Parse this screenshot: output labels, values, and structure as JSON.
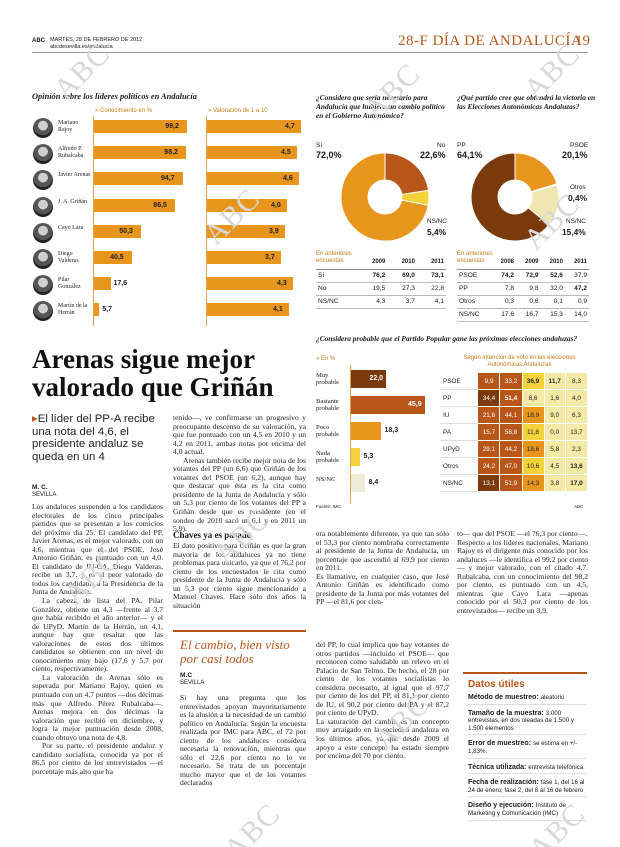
{
  "header": {
    "abc": "ABC",
    "date": "MARTES, 28 DE FEBRERO DE 2012",
    "site": "abcdesevilla.es/andalucia",
    "section": "28-F DÍA DE ANDALUCÍA",
    "page": "19"
  },
  "watermark": "ABC",
  "leaders": {
    "title": "Opinión sobre los líderes políticos en Andalucía",
    "col1": "» Conocimiento en %",
    "col2": "» Valoración de 1 a 10",
    "rows": [
      {
        "name": "Mariano Rajoy",
        "know": "99,2",
        "know_n": 99.2,
        "score": "4,7",
        "score_n": 4.7
      },
      {
        "name": "Alfredo P. Rubalcaba",
        "know": "98,2",
        "know_n": 98.2,
        "score": "4,5",
        "score_n": 4.5
      },
      {
        "name": "Javier Arenas",
        "know": "94,7",
        "know_n": 94.7,
        "score": "4,6",
        "score_n": 4.6
      },
      {
        "name": "J. A. Griñán",
        "know": "86,5",
        "know_n": 86.5,
        "score": "4,0",
        "score_n": 4.0
      },
      {
        "name": "Cayo Lara",
        "know": "50,3",
        "know_n": 50.3,
        "score": "3,9",
        "score_n": 3.9
      },
      {
        "name": "Diego Valderas",
        "know": "40,5",
        "know_n": 40.5,
        "score": "3,7",
        "score_n": 3.7
      },
      {
        "name": "Pilar González",
        "know": "17,6",
        "know_n": 17.6,
        "score": "4,3",
        "score_n": 4.3
      },
      {
        "name": "Martín de la Herrán",
        "know": "5,7",
        "know_n": 5.7,
        "score": "4,1",
        "score_n": 4.1
      }
    ]
  },
  "q1": {
    "title": "¿Considera que sería necesario para Andalucía que hubiera un cambio político en el Gobierno Autonómico?",
    "si_label": "Sí",
    "si": "72,0%",
    "si_n": 72.0,
    "no_label": "No",
    "no": "22,6%",
    "no_n": 22.6,
    "nsnc_label": "NS/NC",
    "nsnc": "5,4%",
    "nsnc_n": 5.4,
    "prev": "En anteriores encuestas",
    "years": [
      "2009",
      "2010",
      "2011"
    ],
    "rows": [
      {
        "l": "Sí",
        "v": [
          "76,2",
          "69,0",
          "73,1"
        ]
      },
      {
        "l": "No",
        "v": [
          "19,5",
          "27,3",
          "22,8"
        ]
      },
      {
        "l": "NS/NC",
        "v": [
          "4,3",
          "3,7",
          "4,1"
        ]
      }
    ]
  },
  "q2": {
    "title": "¿Qué partido cree que obtendrá la victoria en las Elecciones Autonómicas Andaluzas?",
    "pp_label": "PP",
    "pp": "64,1%",
    "pp_n": 64.1,
    "psoe_label": "PSOE",
    "psoe": "20,1%",
    "psoe_n": 20.1,
    "otros_label": "Otros",
    "otros": "0,4%",
    "otros_n": 0.4,
    "nsnc_label": "NS/NC",
    "nsnc": "15,4%",
    "nsnc_n": 15.4,
    "prev": "En anteriores encuestas",
    "years": [
      "2008",
      "2009",
      "2010",
      "2011"
    ],
    "rows": [
      {
        "l": "PSOE",
        "v": [
          "74,2",
          "72,9",
          "52,6",
          "37,9"
        ]
      },
      {
        "l": "PP",
        "v": [
          "7,8",
          "9,8",
          "32,0",
          "47,2"
        ]
      },
      {
        "l": "Otros",
        "v": [
          "0,3",
          "0,6",
          "0,1",
          "0,9"
        ]
      },
      {
        "l": "NS/NC",
        "v": [
          "17,6",
          "16,7",
          "15,3",
          "14,0"
        ]
      }
    ]
  },
  "q3": {
    "title": "¿Considera probable que el Partido Popular gane las próximas elecciones andaluzas?",
    "unit": "» En %",
    "bars": [
      {
        "l": "Muy probable",
        "v": "22,0",
        "n": 22.0,
        "c": "#7a3a0c"
      },
      {
        "l": "Bastante probable",
        "v": "45,9",
        "n": 45.9,
        "c": "#b8561a"
      },
      {
        "l": "Poco probable",
        "v": "18,3",
        "n": 18.3,
        "c": "#e8951e"
      },
      {
        "l": "Nada probable",
        "v": "5,3",
        "n": 5.3,
        "c": "#f3d23a"
      },
      {
        "l": "NS/NC",
        "v": "8,4",
        "n": 8.4,
        "c": "#eeeed8"
      }
    ],
    "source": "Fuente: IMC"
  },
  "heat": {
    "title": "Según intención de voto en las elecciones Autonómicas Andaluzas",
    "rows": [
      {
        "l": "PSOE",
        "v": [
          "9,9",
          "33,2",
          "36,9",
          "11,7",
          "8,3"
        ]
      },
      {
        "l": "PP",
        "v": [
          "34,4",
          "51,4",
          "8,6",
          "1,6",
          "4,0"
        ]
      },
      {
        "l": "IU",
        "v": [
          "21,6",
          "44,1",
          "18,9",
          "9,0",
          "6,3"
        ]
      },
      {
        "l": "PA",
        "v": [
          "15,7",
          "58,8",
          "11,8",
          "0,0",
          "13,7"
        ]
      },
      {
        "l": "UPyD",
        "v": [
          "29,1",
          "44,2",
          "18,6",
          "5,8",
          "2,3"
        ]
      },
      {
        "l": "Otros",
        "v": [
          "24,2",
          "47,0",
          "10,6",
          "4,5",
          "13,6"
        ]
      },
      {
        "l": "NS/NC",
        "v": [
          "13,1",
          "51,9",
          "14,3",
          "3,8",
          "17,0"
        ]
      }
    ],
    "colors": [
      [
        "#b8561a",
        "#b8561a",
        "#f3d23a",
        "#f5e9a6",
        "#f5e9a6"
      ],
      [
        "#7a3a0c",
        "#b8561a",
        "#f5e9a6",
        "#f5e9a6",
        "#f5e9a6"
      ],
      [
        "#b8561a",
        "#b8561a",
        "#e8951e",
        "#f5e9a6",
        "#f5e9a6"
      ],
      [
        "#b8561a",
        "#b8561a",
        "#f3d23a",
        "#f5e9a6",
        "#f5e9a6"
      ],
      [
        "#b8561a",
        "#b8561a",
        "#e8951e",
        "#f5e9a6",
        "#f5e9a6"
      ],
      [
        "#b8561a",
        "#b8561a",
        "#f3d23a",
        "#f5e9a6",
        "#f5e9a6"
      ],
      [
        "#7a3a0c",
        "#b8561a",
        "#e8951e",
        "#f5e9a6",
        "#f5e9a6"
      ]
    ],
    "source": "ABC"
  },
  "article": {
    "headline": "Arenas sigue mejor valorado que Griñán",
    "deck": "El líder del PP-A recibe una nota del 4,6, el presidente andaluz se queda en un 4",
    "author": "M. C.",
    "city": "SEVILLA",
    "col1": [
      "Los andaluces suspenden a los candidatos electorales de los cinco principales partidos que se presentan a los comicios del próximo día 25. El candidato del PP, Javier Arenas, es el mejor valorado, con un 4,6, mientras que el del PSOE, José Antonio Griñán, es puntuado con un 4,0. El candidato de IU-CA, Diego Valderas, recibe un 3,7, y es el peor valorado de todos los candidatos a la Presidencia de la Junta de Andalucía.",
      "La cabeza de lista del PA, Pilar González, obtiene un 4,3 —frente al 3,7 que había recibido el año anterior— y el de UPyD, Martín de la Herrán, un 4,1, aunque hay que resaltar que las valoraciones de estos dos últimos candidatos se obtienen con un nivel de conocimiento muy bajo (17,6 y 5,7 por ciento, respectivamente).",
      "La valoración de Arenas sólo es superada por Mariano Rajoy, quien es puntuado con un 4,7 puntos —dos décimas más que Alfredo Pérez Rubalcaba—. Arenas mejora en dos décimas la valoración que recibió en diciembre, y logra la mejor puntuación desde 2008, cuando obtuvo una nota de 4,8.",
      "Por su parte, el presidente andaluz y candidato socialista, conocida ya por el 86,5 por ciento de los entrevistados —el porcentaje más alto que ha"
    ],
    "col2": [
      "tenido—, ve confirmarse un progresivo y preocupante descenso de su valoración, ya que fue puntuado con un 4,5 en 2010 y un 4,2 en 2011, ambas notas por encima del 4,0 actual.",
      "Arenas también recibe mejor nota de los votantes del PP (un 6,6) que Griñán de los votantes del PSOE (un 6,2), aunque hay que destacar que ésta es la cita como presidente de la Junta de Andalucía y sólo un 5,3 por ciento de los votantes del PP a Griñán desde que es presidente (en el sondeo de 2010 sacó un 6,1 y en 2011 un 5,9)."
    ],
    "subhead": "Chaves ya es pasado",
    "col2b": "El dato positivo para Griñán es que la gran mayoría de los andaluces ya no tiene problemas para ubicarlo, ya que el 76,2 por ciento de los encuestados le cita como presidente de la Junta de Andalucía y sólo un 5,3 por ciento sigue mencionando a Manuel Chaves. Hace sólo dos años la situación",
    "col3": "era notablemente diferente, ya que tan sólo el 53,3 por ciento nombraba correctamente al presidente de la Junta de Andalucía, un porcentaje que ascendió al 69,9 por ciento en 2011.\nEs llamativo, en cualquier caso, que José Antonio Griñán es identificado como presidente de la Junta por más votantes del PP —el 81,6 por cien-",
    "col4": "to— que del PSOE —el 76,3 por ciento—.\nRespecto a los líderes nacionales, Mariano Rajoy es el dirigente más conocido por los andaluces —le identifica el 99,2 por ciento— y mejor valorado, con el citado 4,7. Rubalcaba, con un conocimiento del 98,2 por ciento, es puntuado con un 4,5, mientras que Cayo Lara —apenas conocido por el 50,3 por ciento de los entrevistados— recibe un 3,9."
  },
  "sidebar": {
    "title": "El cambio, bien visto por casi todos",
    "author": "M.C",
    "city": "SEVILLA",
    "text": "Si hay una pregunta que los entrevistados apoyan mayoritariamente es la alusión a la necesidad de un cambio político en Andalucía. Según la encuesta realizada por IMC para ABC, el 72 por ciento de los andaluces considera necesaria la renovación, mientras que sólo el 22,6 por ciento no lo ve necesario. Se trata de un porcentaje mucho mayor que el de los votantes declarados",
    "text2": "del PP, lo cual implica que hay votantes de otros partidos —incluido el PSOE— que reconocen como saludable un relevo en el Palacio de San Telmo. De hecho, el 28 por ciento de los votantes socialistas lo considera necesario, al igual que el 97,7 por ciento de los del PP, el 81,1 por ciento de IU, el 90,2 por ciento del PA y el 87,2 por ciento de UPyD.\nLa saturación del cambio es un concepto muy arraigado en la sociedad andaluza en los últimos años, ya que desde 2009 el apoyo a este concepto ha estado siempre por encima del 70 por ciento."
  },
  "datos": {
    "title": "Datos útiles",
    "items": [
      {
        "k": "Método de muestreo:",
        "v": "aleatorio"
      },
      {
        "k": "Tamaño de la muestra:",
        "v": "3.000 entrevistas, en dos oleadas de 1.500 y 1.500 elementos"
      },
      {
        "k": "Error de muestreo:",
        "v": "se estima en +/- 1,83%."
      },
      {
        "k": "Técnica utilizada:",
        "v": "entrevista telefónica"
      },
      {
        "k": "Fecha de realización:",
        "v": "fase 1, del 16 al 24 de enero; fase 2, del 8 al 16 de febrero"
      },
      {
        "k": "Diseño y ejecución:",
        "v": "Instituto de Marketing y Comunicación (IMC)"
      }
    ]
  }
}
